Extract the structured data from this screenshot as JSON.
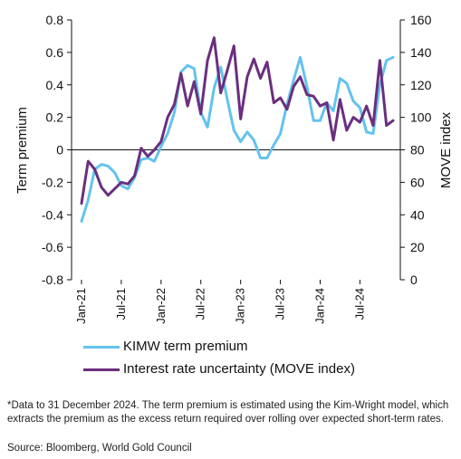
{
  "chart_data": {
    "type": "line",
    "title": "",
    "y_left": {
      "label": "Term premium",
      "range": [
        -0.8,
        0.8
      ],
      "ticks": [
        "0.8",
        "0.6",
        "0.4",
        "0.2",
        "0",
        "-0.2",
        "-0.4",
        "-0.6",
        "-0.8"
      ]
    },
    "y_right": {
      "label": "MOVE index",
      "range": [
        0,
        160
      ],
      "ticks": [
        "160",
        "140",
        "120",
        "100",
        "80",
        "60",
        "40",
        "20",
        "0"
      ]
    },
    "x_ticks": [
      "Jan-21",
      "Jul-21",
      "Jan-22",
      "Jul-22",
      "Jan-23",
      "Jul-23",
      "Jan-24",
      "Jul-24"
    ],
    "x_range": [
      "2021-01",
      "2024-12"
    ],
    "legend_position": "bottom",
    "grid": false,
    "colors": {
      "term_premium": "#63c3ee",
      "move": "#6a2f7e"
    },
    "series": [
      {
        "name": "KIMW term premium",
        "axis": "left",
        "x": [
          "2021-01",
          "2021-02",
          "2021-03",
          "2021-04",
          "2021-05",
          "2021-06",
          "2021-07",
          "2021-08",
          "2021-09",
          "2021-10",
          "2021-11",
          "2021-12",
          "2022-01",
          "2022-02",
          "2022-03",
          "2022-04",
          "2022-05",
          "2022-06",
          "2022-07",
          "2022-08",
          "2022-09",
          "2022-10",
          "2022-11",
          "2022-12",
          "2023-01",
          "2023-02",
          "2023-03",
          "2023-04",
          "2023-05",
          "2023-06",
          "2023-07",
          "2023-08",
          "2023-09",
          "2023-10",
          "2023-11",
          "2023-12",
          "2024-01",
          "2024-02",
          "2024-03",
          "2024-04",
          "2024-05",
          "2024-06",
          "2024-07",
          "2024-08",
          "2024-09",
          "2024-10",
          "2024-11",
          "2024-12"
        ],
        "values": [
          -0.44,
          -0.31,
          -0.12,
          -0.09,
          -0.1,
          -0.14,
          -0.22,
          -0.24,
          -0.17,
          -0.06,
          -0.05,
          -0.07,
          0.02,
          0.1,
          0.23,
          0.48,
          0.52,
          0.5,
          0.23,
          0.14,
          0.38,
          0.51,
          0.31,
          0.12,
          0.05,
          0.11,
          0.06,
          -0.05,
          -0.05,
          0.03,
          0.1,
          0.28,
          0.43,
          0.57,
          0.39,
          0.18,
          0.18,
          0.29,
          0.24,
          0.44,
          0.41,
          0.3,
          0.26,
          0.11,
          0.1,
          0.4,
          0.55,
          0.57
        ]
      },
      {
        "name": "Interest rate uncertainty (MOVE index)",
        "axis": "right",
        "x": [
          "2021-01",
          "2021-02",
          "2021-03",
          "2021-04",
          "2021-05",
          "2021-06",
          "2021-07",
          "2021-08",
          "2021-09",
          "2021-10",
          "2021-11",
          "2021-12",
          "2022-01",
          "2022-02",
          "2022-03",
          "2022-04",
          "2022-05",
          "2022-06",
          "2022-07",
          "2022-08",
          "2022-09",
          "2022-10",
          "2022-11",
          "2022-12",
          "2023-01",
          "2023-02",
          "2023-03",
          "2023-04",
          "2023-05",
          "2023-06",
          "2023-07",
          "2023-08",
          "2023-09",
          "2023-10",
          "2023-11",
          "2023-12",
          "2024-01",
          "2024-02",
          "2024-03",
          "2024-04",
          "2024-05",
          "2024-06",
          "2024-07",
          "2024-08",
          "2024-09",
          "2024-10",
          "2024-11",
          "2024-12"
        ],
        "values": [
          47,
          73,
          68,
          57,
          52,
          56,
          60,
          59,
          64,
          81,
          76,
          80,
          85,
          100,
          108,
          127,
          107,
          122,
          102,
          135,
          149,
          115,
          129,
          144,
          99,
          125,
          136,
          124,
          134,
          109,
          112,
          105,
          119,
          125,
          114,
          113,
          107,
          109,
          86,
          111,
          92,
          100,
          97,
          107,
          95,
          135,
          95,
          98
        ]
      }
    ]
  },
  "footnote": "*Data to 31 December 2024. The term premium is estimated using the Kim-Wright model, which extracts the premium as the excess return required over rolling over expected short-term rates.",
  "source": "Source: Bloomberg, World Gold Council"
}
